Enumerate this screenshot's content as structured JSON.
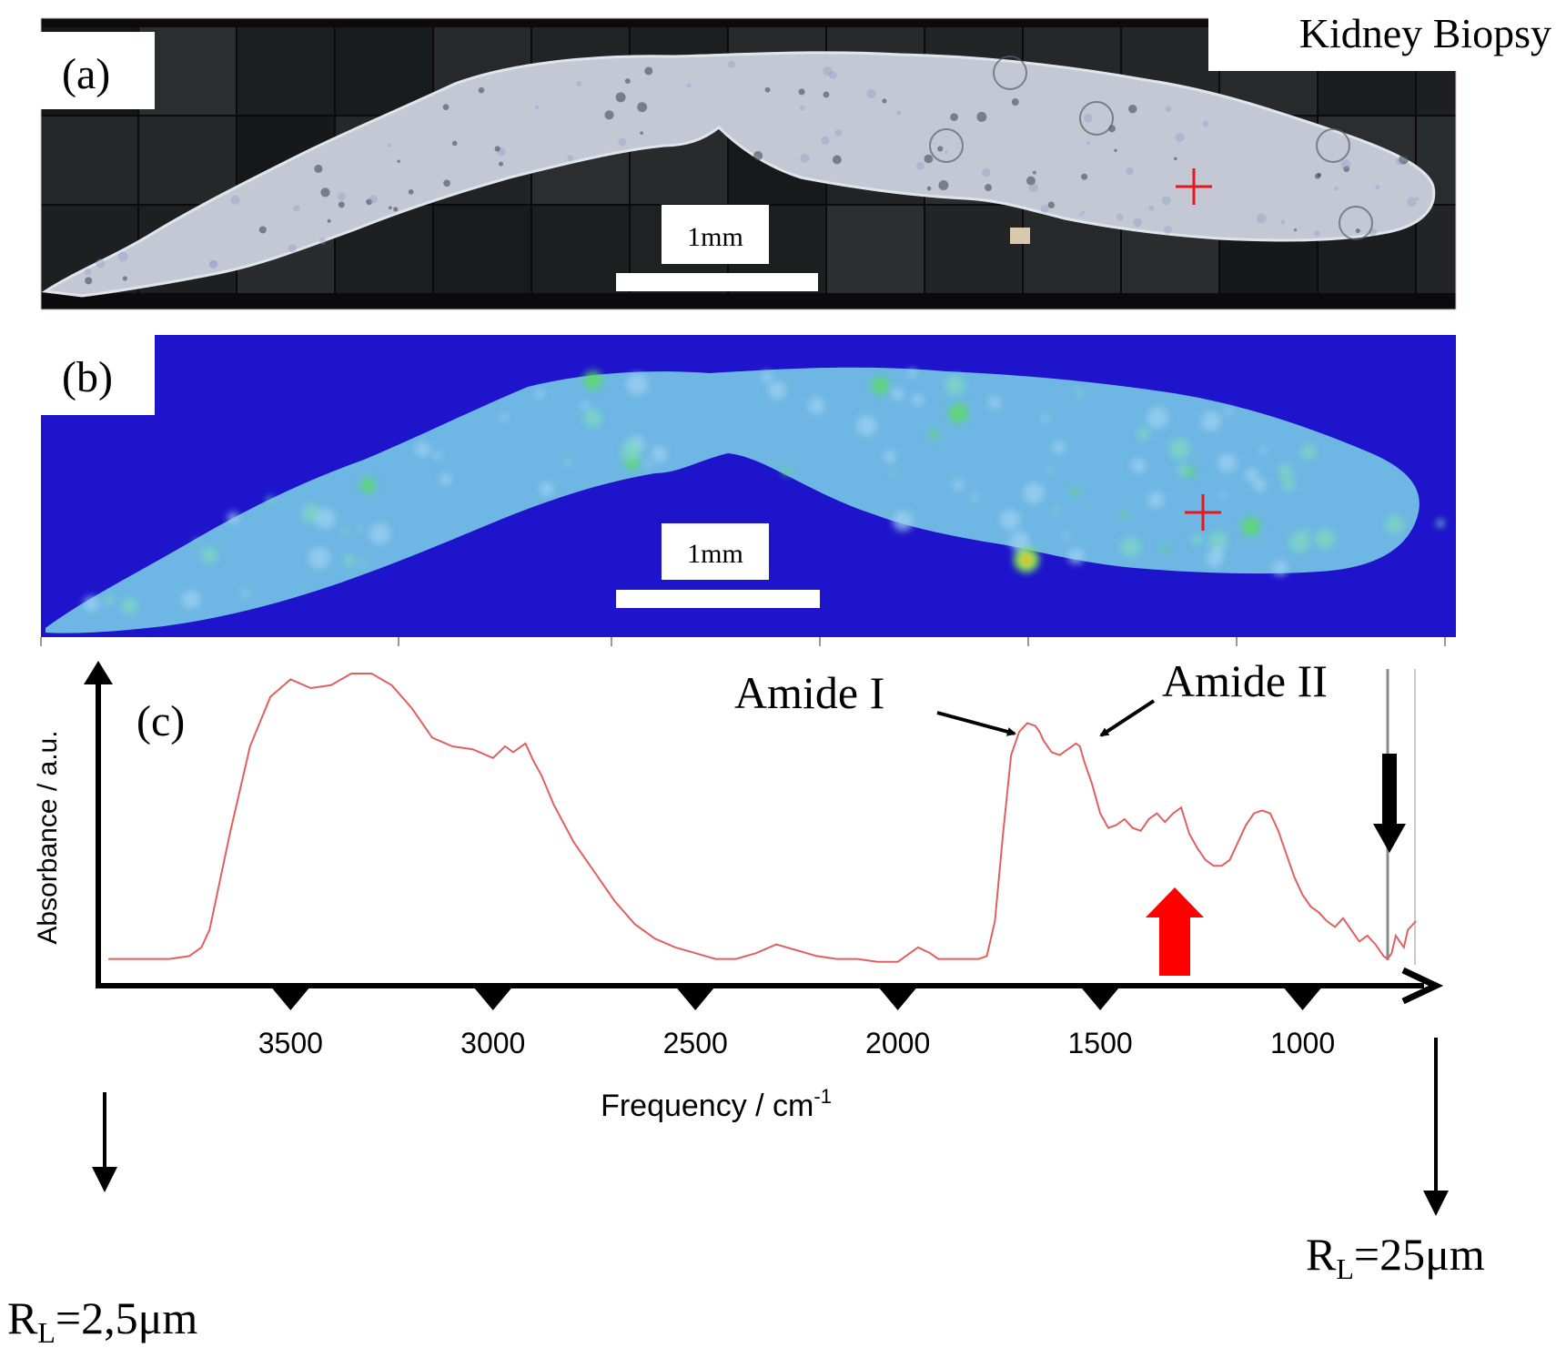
{
  "figure": {
    "title": "Kidney Biopsy",
    "panel_a": {
      "label": "(a)",
      "scale_bar_label": "1mm"
    },
    "panel_b": {
      "label": "(b)",
      "scale_bar_label": "1mm"
    },
    "panel_c": {
      "label": "(c)",
      "ylabel": "Absorbance / a.u.",
      "xlabel": "Frequency / cm",
      "xlabel_sup": "-1",
      "annotations": {
        "amide1": "Amide I",
        "amide2": "Amide II"
      },
      "left_limit_prefix": "R",
      "left_limit_sub": "L",
      "left_limit_value": "=2,5μm",
      "right_limit_prefix": "R",
      "right_limit_sub": "L",
      "right_limit_value": "=25μm"
    }
  },
  "colors": {
    "spectrum": "#e06060",
    "map_background": "#1e14cc",
    "marker": "#e8161e",
    "red_arrow": "#ff0000"
  },
  "chart_data": {
    "type": "line",
    "title": "",
    "xlabel": "Frequency / cm-1",
    "ylabel": "Absorbance / a.u.",
    "x_reversed": true,
    "xlim": [
      3975,
      700
    ],
    "ylim": [
      0,
      1
    ],
    "xticks": [
      3500,
      3000,
      2500,
      2000,
      1500,
      1000
    ],
    "series": [
      {
        "x": [
          3950,
          3800,
          3750,
          3720,
          3700,
          3650,
          3600,
          3550,
          3500,
          3450,
          3400,
          3350,
          3300,
          3250,
          3200,
          3150,
          3100,
          3050,
          3000,
          2970,
          2950,
          2920,
          2900,
          2880,
          2850,
          2800,
          2750,
          2700,
          2650,
          2600,
          2550,
          2500,
          2450,
          2400,
          2350,
          2300,
          2250,
          2200,
          2150,
          2100,
          2050,
          2000,
          1980,
          1950,
          1920,
          1900,
          1880,
          1850,
          1800,
          1780,
          1760,
          1740,
          1720,
          1700,
          1680,
          1660,
          1650,
          1640,
          1620,
          1600,
          1580,
          1560,
          1550,
          1540,
          1520,
          1500,
          1480,
          1460,
          1440,
          1420,
          1400,
          1380,
          1360,
          1340,
          1320,
          1300,
          1280,
          1260,
          1240,
          1220,
          1200,
          1180,
          1160,
          1140,
          1120,
          1100,
          1080,
          1060,
          1040,
          1020,
          1000,
          980,
          960,
          940,
          920,
          900,
          880,
          860,
          840,
          820,
          800,
          790,
          780,
          770,
          760,
          750,
          740,
          720
        ],
        "y": [
          0.02,
          0.02,
          0.03,
          0.06,
          0.12,
          0.45,
          0.75,
          0.92,
          0.98,
          0.95,
          0.96,
          1.0,
          1.0,
          0.96,
          0.88,
          0.78,
          0.75,
          0.74,
          0.71,
          0.75,
          0.73,
          0.76,
          0.7,
          0.65,
          0.55,
          0.42,
          0.32,
          0.22,
          0.14,
          0.09,
          0.06,
          0.04,
          0.02,
          0.02,
          0.04,
          0.07,
          0.05,
          0.03,
          0.02,
          0.02,
          0.01,
          0.01,
          0.03,
          0.06,
          0.04,
          0.02,
          0.02,
          0.02,
          0.02,
          0.03,
          0.15,
          0.45,
          0.72,
          0.8,
          0.83,
          0.82,
          0.8,
          0.77,
          0.73,
          0.72,
          0.74,
          0.76,
          0.75,
          0.7,
          0.62,
          0.52,
          0.47,
          0.48,
          0.5,
          0.47,
          0.46,
          0.5,
          0.52,
          0.49,
          0.52,
          0.54,
          0.45,
          0.4,
          0.36,
          0.34,
          0.34,
          0.36,
          0.42,
          0.48,
          0.52,
          0.53,
          0.52,
          0.46,
          0.38,
          0.3,
          0.24,
          0.2,
          0.18,
          0.15,
          0.13,
          0.16,
          0.12,
          0.08,
          0.1,
          0.07,
          0.03,
          0.02,
          0.04,
          0.1,
          0.08,
          0.06,
          0.12,
          0.15
        ]
      }
    ]
  }
}
